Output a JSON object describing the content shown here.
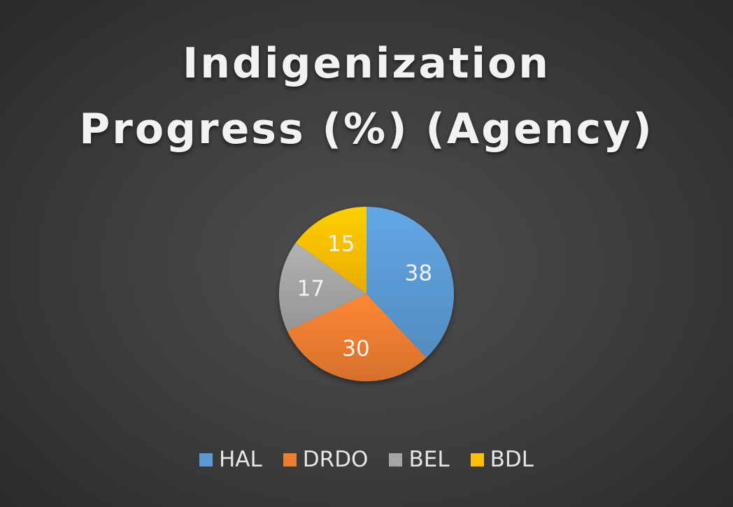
{
  "chart_data": {
    "type": "pie",
    "title_lines": [
      "Indigenization",
      "Progress (%) (Agency)"
    ],
    "title": "Indigenization Progress (%) (Agency)",
    "categories": [
      "HAL",
      "DRDO",
      "BEL",
      "BDL"
    ],
    "values": [
      38,
      30,
      17,
      15
    ],
    "data_labels": [
      "38",
      "30",
      "17",
      "15"
    ],
    "colors": [
      "#5b9bd5",
      "#ed7d31",
      "#a5a5a5",
      "#ffc000"
    ],
    "start_angle": "12 o'clock",
    "direction": "clockwise",
    "legend_position": "bottom"
  }
}
